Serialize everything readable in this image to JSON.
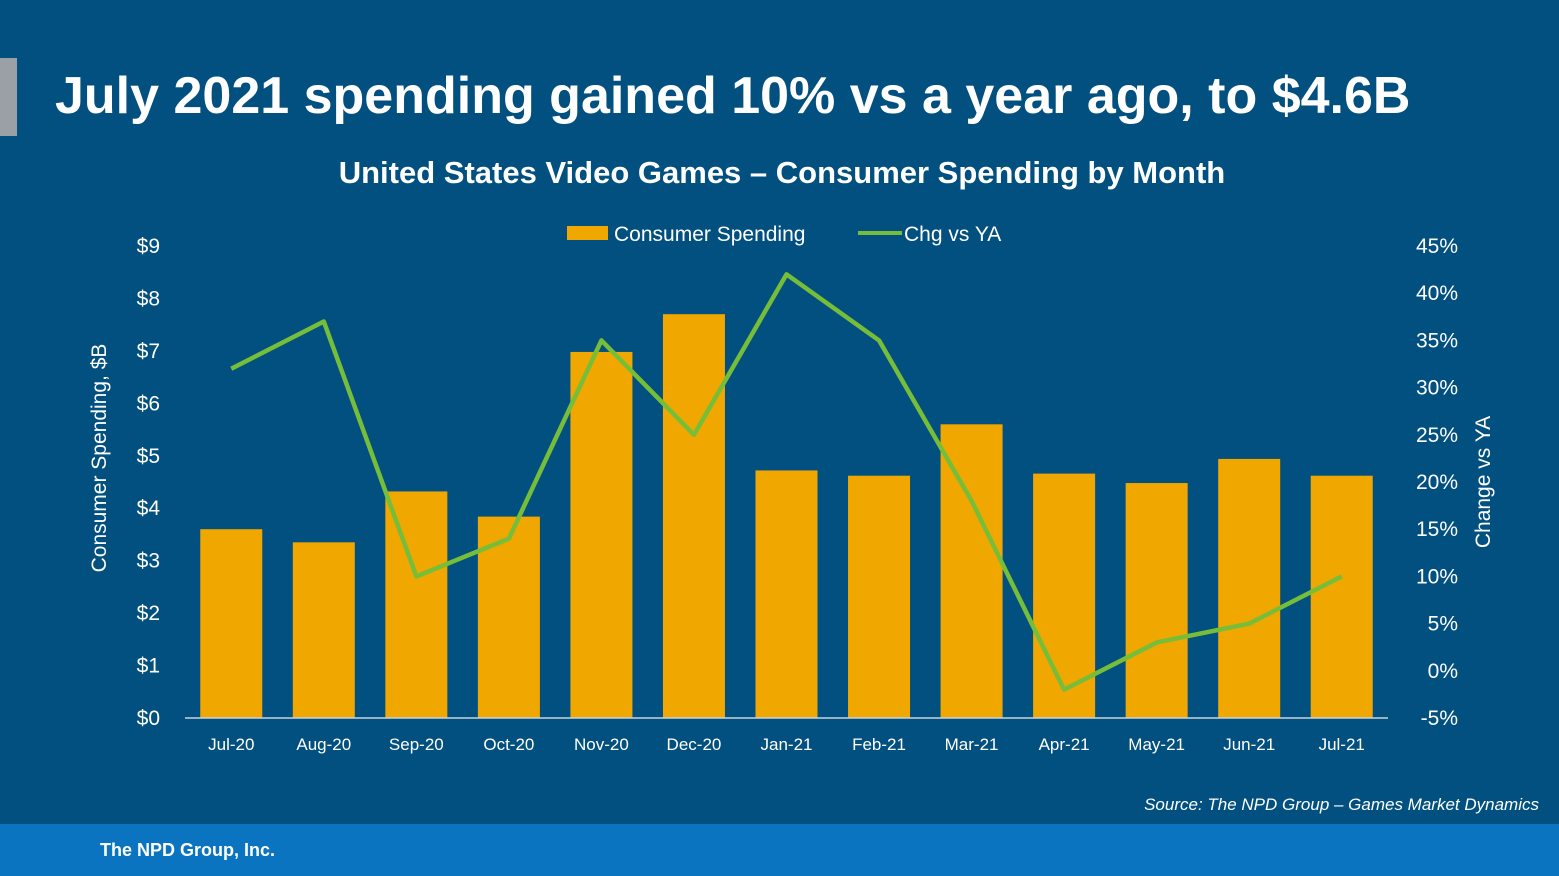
{
  "headline": "July 2021 spending gained 10% vs a year ago, to $4.6B",
  "source": "Source: The NPD Group – Games Market Dynamics",
  "footer": {
    "company": "The NPD Group, Inc."
  },
  "colors": {
    "background": "#02507f",
    "bar": "#f0a800",
    "line": "#76be3a",
    "footer": "#0b74c0",
    "accent": "#9aa0a6"
  },
  "chart_data": {
    "type": "bar+line",
    "title": "United States Video Games – Consumer Spending by Month",
    "categories": [
      "Jul-20",
      "Aug-20",
      "Sep-20",
      "Oct-20",
      "Nov-20",
      "Dec-20",
      "Jan-21",
      "Feb-21",
      "Mar-21",
      "Apr-21",
      "May-21",
      "Jun-21",
      "Jul-21"
    ],
    "series": [
      {
        "name": "Consumer Spending",
        "type": "bar",
        "axis": "left",
        "values": [
          3.6,
          3.35,
          4.32,
          3.84,
          6.98,
          7.7,
          4.72,
          4.62,
          5.6,
          4.66,
          4.48,
          4.94,
          4.62
        ]
      },
      {
        "name": "Chg vs YA",
        "type": "line",
        "axis": "right",
        "values": [
          32,
          37,
          10,
          14,
          35,
          25,
          42,
          35,
          18,
          -2,
          3,
          5,
          10
        ]
      }
    ],
    "ylabel": "Consumer Spending, $B",
    "y2label": "Change vs YA",
    "ylim": [
      0,
      9
    ],
    "y2lim": [
      -5,
      45
    ],
    "yticks": [
      "$0",
      "$1",
      "$2",
      "$3",
      "$4",
      "$5",
      "$6",
      "$7",
      "$8",
      "$9"
    ],
    "y2ticks": [
      "-5%",
      "0%",
      "5%",
      "10%",
      "15%",
      "20%",
      "25%",
      "30%",
      "35%",
      "40%",
      "45%"
    ],
    "legend": "top-center",
    "grid": false
  }
}
